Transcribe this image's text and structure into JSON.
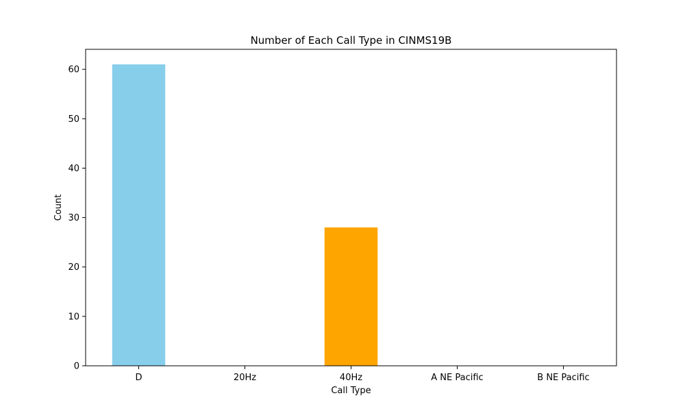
{
  "chart_data": {
    "type": "bar",
    "title": "Number of Each Call Type in CINMS19B",
    "xlabel": "Call Type",
    "ylabel": "Count",
    "categories": [
      "D",
      "20Hz",
      "40Hz",
      "A NE Pacific",
      "B NE Pacific"
    ],
    "values": [
      61,
      0,
      28,
      0,
      0
    ],
    "colors": [
      "#87ceeb",
      "#87ceeb",
      "#ffa500",
      "#87ceeb",
      "#87ceeb"
    ],
    "ylim": [
      0,
      64.05
    ],
    "yticks": [
      0,
      10,
      20,
      30,
      40,
      50,
      60
    ],
    "grid": false,
    "legend": "none"
  }
}
